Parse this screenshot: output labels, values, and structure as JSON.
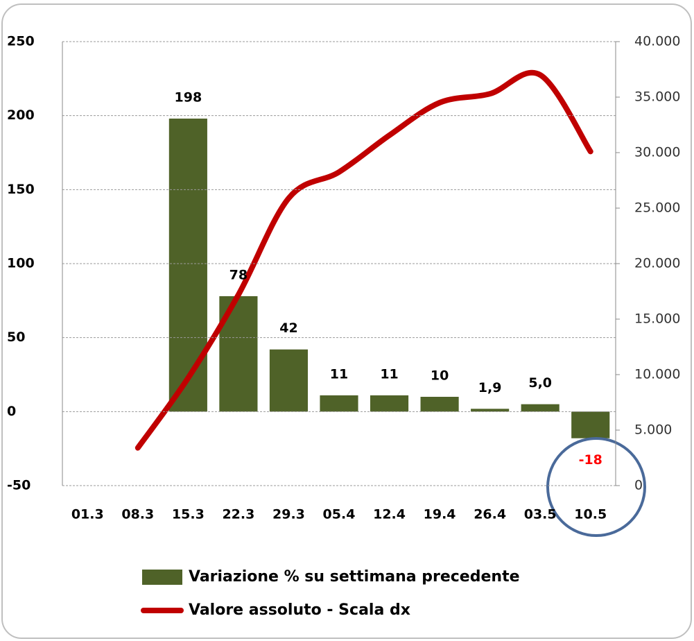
{
  "chart_data": {
    "type": "bar",
    "categories": [
      "01.3",
      "08.3",
      "15.3",
      "22.3",
      "29.3",
      "05.4",
      "12.4",
      "19.4",
      "26.4",
      "03.5",
      "10.5"
    ],
    "series": [
      {
        "name": "Variazione % su settimana precedente",
        "type": "bar",
        "color": "#4f6228",
        "values": [
          null,
          null,
          198,
          78,
          42,
          11,
          11,
          10,
          1.9,
          5.0,
          -18
        ],
        "value_labels": [
          null,
          null,
          "198",
          "78",
          "42",
          "11",
          "11",
          "10",
          "1,9",
          "5,0",
          "-18"
        ]
      },
      {
        "name": "Valore assoluto - Scala dx",
        "type": "line",
        "color": "#c00000",
        "axis": "y2",
        "values": [
          null,
          3400,
          9700,
          17200,
          25900,
          28250,
          31560,
          34500,
          35300,
          37000,
          30100
        ]
      }
    ],
    "negative_label_color": "#ff0000",
    "ylim": [
      -50,
      250
    ],
    "yticks": [
      -50,
      0,
      50,
      100,
      150,
      200,
      250
    ],
    "y2lim": [
      0,
      40000
    ],
    "y2ticks": [
      0,
      {
        "value": 5000,
        "label": "5.000"
      },
      {
        "value": 10000,
        "label": "10.000"
      },
      {
        "value": 15000,
        "label": "15.000"
      },
      {
        "value": 20000,
        "label": "20.000"
      },
      {
        "value": 25000,
        "label": "25.000"
      },
      {
        "value": 30000,
        "label": "30.000"
      },
      {
        "value": 35000,
        "label": "35.000"
      },
      {
        "value": 40000,
        "label": "40.000"
      }
    ],
    "grid": true
  }
}
